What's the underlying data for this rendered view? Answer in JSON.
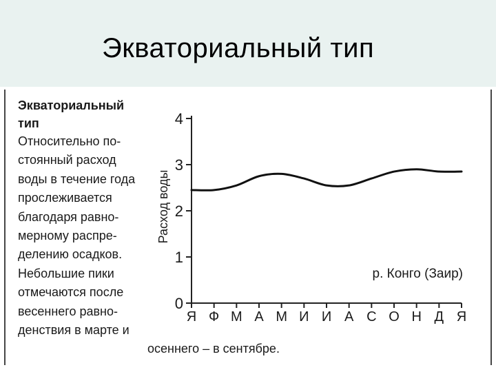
{
  "slide": {
    "title": "Экваториальный тип"
  },
  "caption": {
    "heading_lines": [
      "Экваториальный",
      "тип"
    ],
    "body_lines": [
      "Относительно по-",
      "стоянный расход",
      "воды в течение года",
      "прослеживается",
      "благодаря равно-",
      "мерному распре-",
      "делению осадков.",
      "Небольшие пики",
      "отмечаются после",
      "весеннего равно-",
      "денствия в марте и"
    ],
    "tail": "осеннего – в сентябре."
  },
  "chart_data": {
    "type": "line",
    "ylabel": "Расход воды",
    "annotation": "р. Конго (Заир)",
    "ylim": [
      0,
      4
    ],
    "yticks": [
      "0",
      "1",
      "2",
      "3",
      "4"
    ],
    "categories": [
      "Я",
      "Ф",
      "М",
      "А",
      "М",
      "И",
      "И",
      "А",
      "С",
      "О",
      "Н",
      "Д",
      "Я"
    ],
    "values": [
      2.45,
      2.45,
      2.55,
      2.75,
      2.8,
      2.7,
      2.55,
      2.55,
      2.7,
      2.85,
      2.9,
      2.85,
      2.85
    ],
    "grid": false,
    "colors": {
      "line": "#111111",
      "axis": "#222222"
    }
  }
}
